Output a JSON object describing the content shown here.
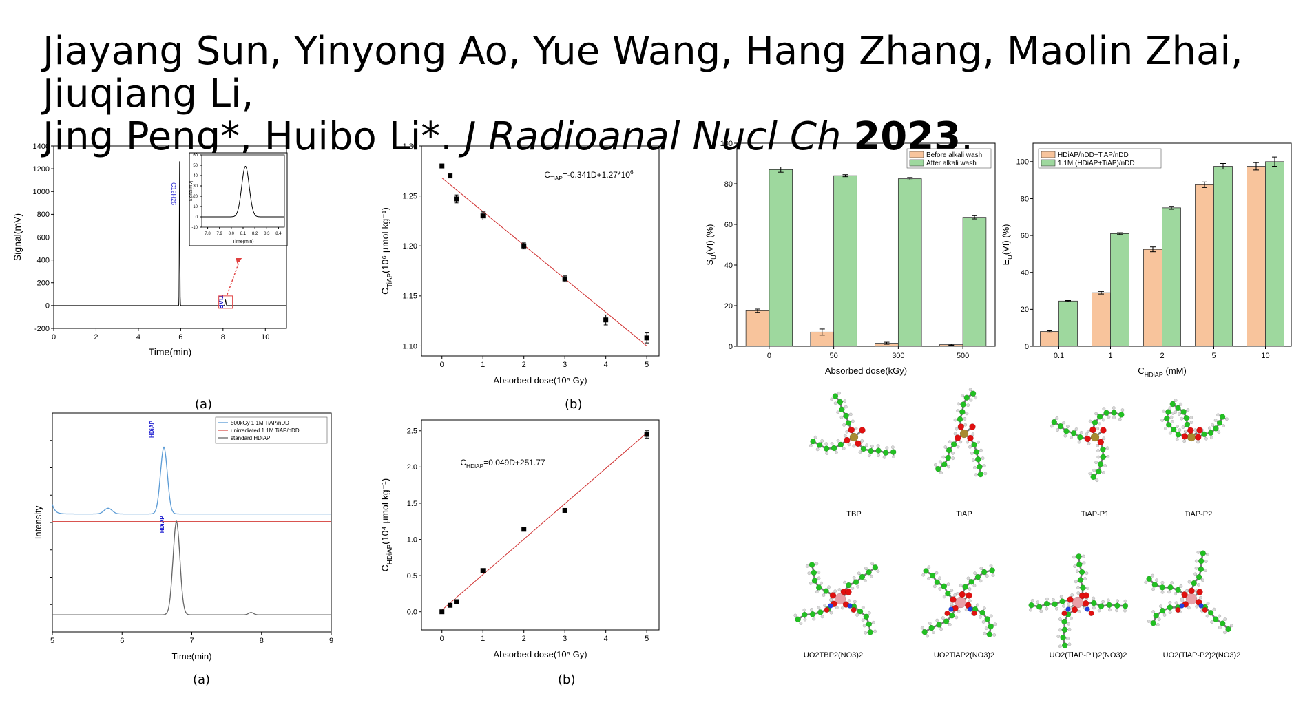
{
  "citation": {
    "authors_line1": "Jiayang Sun, Yinyong Ao, Yue Wang, Hang Zhang, Maolin Zhai, Jiuqiang Li,",
    "authors_line2": "Jing Peng*, Huibo Li*.",
    "journal": "J Radioanal Nucl Ch",
    "year": "2023",
    "end": "."
  },
  "captions": {
    "a1": "(a)",
    "b1": "(b)",
    "a2": "(a)",
    "b2": "(b)"
  },
  "chart_data": [
    {
      "id": "gc",
      "type": "line",
      "xlabel": "Time(min)",
      "ylabel": "Signal(mV)",
      "xlim": [
        0,
        11
      ],
      "ylim": [
        -200,
        1400
      ],
      "xticks": [
        "0",
        "2",
        "4",
        "6",
        "8",
        "10"
      ],
      "xtick_values": [
        0,
        2,
        4,
        6,
        8,
        10
      ],
      "yticks": [
        "-200",
        "0",
        "200",
        "400",
        "600",
        "800",
        "1000",
        "1200",
        "1400"
      ],
      "ytick_values": [
        -200,
        0,
        200,
        400,
        600,
        800,
        1000,
        1200,
        1400
      ],
      "peaks": [
        {
          "label": "C12H26",
          "center": 5.95,
          "height": 1265,
          "color": "#1f1fd0"
        },
        {
          "label": "TiAP",
          "center": 8.12,
          "height": 48,
          "color": "#1f1fd0"
        }
      ],
      "inset": {
        "xlabel": "Time(min)",
        "ylabel": "Signal(mV)",
        "xlim": [
          7.75,
          8.45
        ],
        "ylim": [
          -10,
          60
        ],
        "xticks": [
          "7.8",
          "7.9",
          "8.0",
          "8.1",
          "8.2",
          "8.3",
          "8.4"
        ],
        "xtick_values": [
          7.8,
          7.9,
          8.0,
          8.1,
          8.2,
          8.3,
          8.4
        ],
        "yticks": [
          "-10",
          "0",
          "10",
          "20",
          "30",
          "40",
          "50",
          "60"
        ],
        "ytick_values": [
          -10,
          0,
          10,
          20,
          30,
          40,
          50,
          60
        ],
        "peak_center": 8.12,
        "peak_height": 49
      }
    },
    {
      "id": "ctiap",
      "type": "scatter",
      "xlabel": "Absorbed dose(10⁵ Gy)",
      "ylabel": "C_TiAP(10⁶ μmol kg⁻¹)",
      "xlim": [
        -0.5,
        5.3
      ],
      "ylim": [
        1.09,
        1.3
      ],
      "xticks": [
        "0",
        "1",
        "2",
        "3",
        "4",
        "5"
      ],
      "xtick_values": [
        0,
        1,
        2,
        3,
        4,
        5
      ],
      "yticks": [
        "1.10",
        "1.15",
        "1.20",
        "1.25",
        "1.30"
      ],
      "ytick_values": [
        1.1,
        1.15,
        1.2,
        1.25,
        1.3
      ],
      "x": [
        0,
        0.2,
        0.35,
        1,
        2,
        3,
        4,
        5
      ],
      "y": [
        1.28,
        1.27,
        1.247,
        1.23,
        1.2,
        1.167,
        1.126,
        1.108
      ],
      "err": [
        0,
        0,
        0.004,
        0.004,
        0.003,
        0.003,
        0.005,
        0.005
      ],
      "fit": {
        "x": [
          0,
          5
        ],
        "y": [
          1.268,
          1.1
        ]
      },
      "equation_main": "C",
      "equation_sub": "TiAP",
      "equation_rest": "=-0.341D+1.27*10",
      "equation_sup": "6"
    },
    {
      "id": "lc",
      "type": "line",
      "xlabel": "Time(min)",
      "ylabel": "Intensity",
      "xlim": [
        5,
        9
      ],
      "ylim": [
        0,
        1.15
      ],
      "xticks": [
        "5",
        "6",
        "7",
        "8",
        "9"
      ],
      "xtick_values": [
        5,
        6,
        7,
        8,
        9
      ],
      "legend": [
        "500kGy 1.1M TiAP/nDD",
        "unirradiated 1.1M TiAP/nDD",
        "standard HDiAP"
      ],
      "series": [
        {
          "name": "500kGy 1.1M TiAP/nDD",
          "color": "#5b9bd5",
          "baseline": 0.62,
          "peaks": [
            [
              6.6,
              0.35,
              0.07
            ],
            [
              5.8,
              0.03,
              0.08
            ]
          ]
        },
        {
          "name": "unirradiated 1.1M TiAP/nDD",
          "color": "#d9534f",
          "baseline": 0.58,
          "peaks": []
        },
        {
          "name": "standard HDiAP",
          "color": "#666666",
          "baseline": 0.09,
          "peaks": [
            [
              6.78,
              0.49,
              0.07
            ],
            [
              7.85,
              0.012,
              0.05
            ]
          ]
        }
      ],
      "labels": [
        "HDiAP",
        "HDiAP"
      ]
    },
    {
      "id": "chdiap",
      "type": "scatter",
      "xlabel": "Absorbed dose(10⁵ Gy)",
      "ylabel": "C_HDiAP(10⁴ μmol kg⁻¹)",
      "xlim": [
        -0.5,
        5.3
      ],
      "ylim": [
        -0.25,
        2.65
      ],
      "xticks": [
        "0",
        "1",
        "2",
        "3",
        "4",
        "5"
      ],
      "xtick_values": [
        0,
        1,
        2,
        3,
        4,
        5
      ],
      "yticks": [
        "0.0",
        "0.5",
        "1.0",
        "1.5",
        "2.0",
        "2.5"
      ],
      "ytick_values": [
        0,
        0.5,
        1,
        1.5,
        2,
        2.5
      ],
      "x": [
        0,
        0.2,
        0.35,
        1,
        2,
        3,
        5
      ],
      "y": [
        0.0,
        0.09,
        0.14,
        0.57,
        1.14,
        1.4,
        2.45
      ],
      "err": [
        0,
        0,
        0,
        0.02,
        0.01,
        0.01,
        0.05
      ],
      "fit": {
        "x": [
          0,
          5
        ],
        "y": [
          0.025,
          2.47
        ]
      },
      "equation_main": "C",
      "equation_sub": "HDiAP",
      "equation_rest": "=0.049D+251.77"
    },
    {
      "id": "su",
      "type": "bar",
      "xlabel": "Absorbed dose(kGy)",
      "ylabel": "S_U(VI) (%)",
      "categories": [
        "0",
        "50",
        "300",
        "500"
      ],
      "ylim": [
        0,
        100
      ],
      "yticks": [
        "0",
        "20",
        "40",
        "60",
        "80",
        "100"
      ],
      "ytick_values": [
        0,
        20,
        40,
        60,
        80,
        100
      ],
      "series": [
        {
          "name": "Before alkali wash",
          "color": "#f8c49c",
          "values": [
            17.5,
            7,
            1.5,
            0.8
          ],
          "err": [
            0.8,
            1.5,
            0.5,
            0.3
          ]
        },
        {
          "name": "After alkali wash",
          "color": "#9ed89e",
          "values": [
            87,
            84,
            82.5,
            63.5
          ],
          "err": [
            1.3,
            0.5,
            0.6,
            0.8
          ]
        }
      ]
    },
    {
      "id": "eu",
      "type": "bar",
      "xlabel": "C_HDiAP (mM)",
      "ylabel": "E_U(VI) (%)",
      "categories": [
        "0.1",
        "1",
        "2",
        "5",
        "10"
      ],
      "ylim": [
        0,
        110
      ],
      "yticks": [
        "0",
        "20",
        "40",
        "60",
        "80",
        "100"
      ],
      "ytick_values": [
        0,
        20,
        40,
        60,
        80,
        100
      ],
      "series": [
        {
          "name": "HDiAP/nDD+TiAP/nDD",
          "color": "#f8c49c",
          "values": [
            8,
            29,
            52.5,
            87.5,
            97.5
          ],
          "err": [
            0.4,
            0.7,
            1.3,
            1.5,
            2
          ]
        },
        {
          "name": "1.1M (HDiAP+TiAP)/nDD",
          "color": "#9ed89e",
          "values": [
            24.5,
            61,
            75,
            97.5,
            100
          ],
          "err": [
            0.3,
            0.5,
            0.8,
            1.5,
            2.5
          ]
        }
      ]
    }
  ],
  "molecules": {
    "row1": [
      "TBP",
      "TiAP",
      "TiAP-P1",
      "TiAP-P2"
    ],
    "row2": [
      "UO2TBP2(NO3)2",
      "UO2TiAP2(NO3)2",
      "UO2(TiAP-P1)2(NO3)2",
      "UO2(TiAP-P2)2(NO3)2"
    ]
  },
  "atom_colors": {
    "carbon": "#22c022",
    "hydrogen": "#d8d8d8",
    "oxygen": "#e01010",
    "phosphorus": "#a88a30",
    "uranium": "#e8a0a8",
    "nitrogen": "#2040e0"
  }
}
